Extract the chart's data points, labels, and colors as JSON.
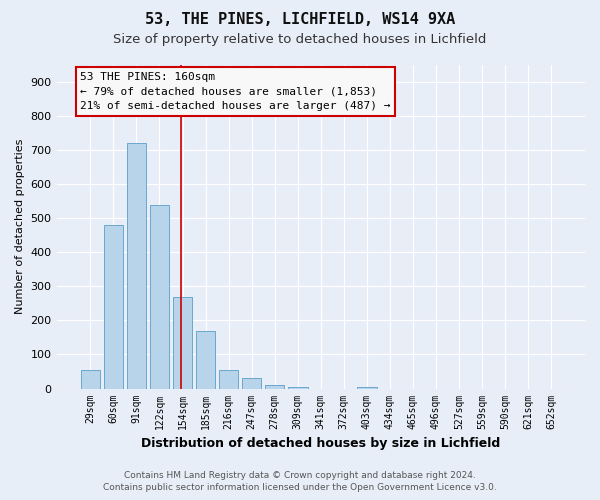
{
  "title1": "53, THE PINES, LICHFIELD, WS14 9XA",
  "title2": "Size of property relative to detached houses in Lichfield",
  "xlabel": "Distribution of detached houses by size in Lichfield",
  "ylabel": "Number of detached properties",
  "categories": [
    "29sqm",
    "60sqm",
    "91sqm",
    "122sqm",
    "154sqm",
    "185sqm",
    "216sqm",
    "247sqm",
    "278sqm",
    "309sqm",
    "341sqm",
    "372sqm",
    "403sqm",
    "434sqm",
    "465sqm",
    "496sqm",
    "527sqm",
    "559sqm",
    "590sqm",
    "621sqm",
    "652sqm"
  ],
  "values": [
    55,
    480,
    720,
    540,
    270,
    170,
    55,
    30,
    10,
    5,
    0,
    0,
    5,
    0,
    0,
    0,
    0,
    0,
    0,
    0,
    0
  ],
  "bar_color": "#b8d4ea",
  "bar_edge_color": "#5a9ec9",
  "bg_color": "#e8eef8",
  "grid_color": "#ffffff",
  "red_line_index": 4,
  "annotation_line1": "53 THE PINES: 160sqm",
  "annotation_line2": "← 79% of detached houses are smaller (1,853)",
  "annotation_line3": "21% of semi-detached houses are larger (487) →",
  "footer1": "Contains HM Land Registry data © Crown copyright and database right 2024.",
  "footer2": "Contains public sector information licensed under the Open Government Licence v3.0.",
  "ylim": [
    0,
    950
  ],
  "yticks": [
    0,
    100,
    200,
    300,
    400,
    500,
    600,
    700,
    800,
    900
  ],
  "title1_fontsize": 11,
  "title2_fontsize": 9.5,
  "annotation_fontsize": 8,
  "ylabel_fontsize": 8,
  "xlabel_fontsize": 9,
  "footer_fontsize": 6.5
}
